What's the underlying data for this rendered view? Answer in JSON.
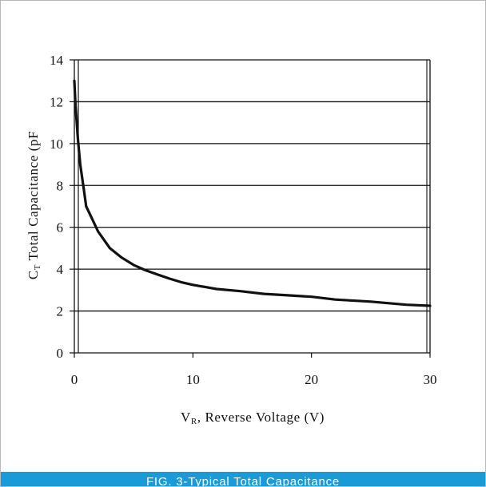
{
  "caption": "FIG. 3-Typical Total Capacitance",
  "chart_data": {
    "type": "line",
    "xlabel_main": "V",
    "xlabel_sub": "R",
    "xlabel_rest": ", Reverse Voltage (V)",
    "ylabel_main": "C",
    "ylabel_sub": "T",
    "ylabel_rest": " Total Capacitance (pF",
    "xlim": [
      0,
      30
    ],
    "ylim": [
      0,
      14
    ],
    "xticks": [
      0,
      10,
      20,
      30
    ],
    "yticks": [
      0,
      2,
      4,
      6,
      8,
      10,
      12,
      14
    ],
    "grid": "horizontal",
    "series": [
      {
        "x": [
          0,
          0.1,
          0.3,
          0.5,
          0.8,
          1,
          1.5,
          2,
          3,
          4,
          5,
          6,
          7,
          8,
          9,
          10,
          12,
          14,
          16,
          18,
          20,
          22,
          25,
          28,
          30
        ],
        "y": [
          13,
          11.8,
          10.2,
          9.0,
          7.8,
          7.0,
          6.4,
          5.8,
          5.0,
          4.55,
          4.2,
          3.95,
          3.75,
          3.55,
          3.38,
          3.25,
          3.05,
          2.95,
          2.82,
          2.75,
          2.68,
          2.55,
          2.45,
          2.3,
          2.25
        ],
        "color": "#111111"
      }
    ]
  }
}
